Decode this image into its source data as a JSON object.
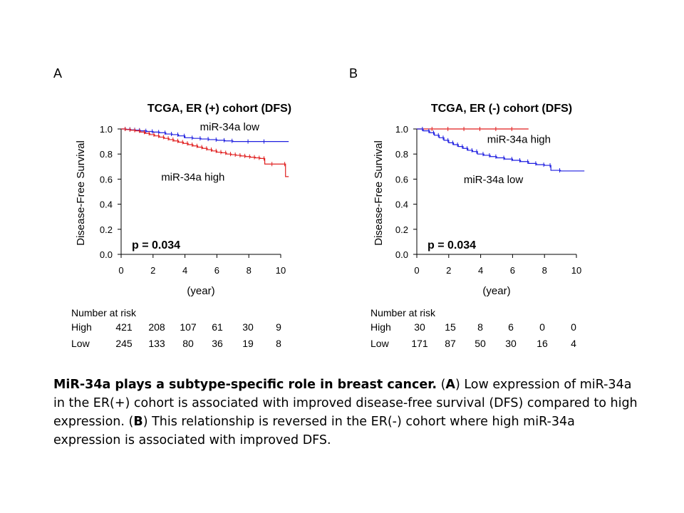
{
  "panels": [
    {
      "letter": "A",
      "chart_data": {
        "type": "line",
        "title": "TCGA, ER (+) cohort (DFS)",
        "xlabel": "(year)",
        "ylabel": "Disease-Free Survival",
        "xlim": [
          0,
          10
        ],
        "ylim": [
          0,
          1
        ],
        "xticks": [
          "0",
          "2",
          "4",
          "6",
          "8",
          "10"
        ],
        "yticks": [
          "0.0",
          "0.2",
          "0.4",
          "0.6",
          "0.8",
          "1.0"
        ],
        "annotation": "p = 0.034",
        "series": [
          {
            "name": "miR-34a low",
            "color": "#1f1fe0",
            "x": [
              0,
              0.3,
              0.6,
              0.9,
              1.2,
              1.6,
              2.0,
              2.4,
              2.8,
              3.2,
              3.6,
              4.0,
              4.5,
              5.0,
              5.5,
              6.0,
              6.5,
              7.0,
              8.0,
              9.0,
              10.5
            ],
            "y": [
              1.0,
              0.997,
              0.993,
              0.99,
              0.985,
              0.98,
              0.975,
              0.97,
              0.96,
              0.955,
              0.945,
              0.93,
              0.925,
              0.92,
              0.915,
              0.91,
              0.905,
              0.9,
              0.9,
              0.9,
              0.9
            ]
          },
          {
            "name": "miR-34a high",
            "color": "#e01f1f",
            "x": [
              0,
              0.3,
              0.6,
              0.9,
              1.2,
              1.5,
              1.8,
              2.1,
              2.4,
              2.7,
              3.0,
              3.3,
              3.6,
              3.9,
              4.2,
              4.5,
              4.8,
              5.1,
              5.4,
              5.7,
              6.0,
              6.3,
              6.6,
              6.9,
              7.2,
              7.5,
              7.8,
              8.1,
              8.4,
              8.7,
              9.0,
              9.5,
              10.3,
              10.5
            ],
            "y": [
              1.0,
              0.995,
              0.99,
              0.985,
              0.975,
              0.965,
              0.955,
              0.945,
              0.935,
              0.925,
              0.915,
              0.905,
              0.895,
              0.885,
              0.875,
              0.865,
              0.855,
              0.845,
              0.835,
              0.825,
              0.815,
              0.81,
              0.8,
              0.795,
              0.79,
              0.785,
              0.78,
              0.775,
              0.77,
              0.765,
              0.72,
              0.72,
              0.62,
              0.62
            ]
          }
        ],
        "series_labels": [
          {
            "series": "miR-34a low",
            "x": 6.8,
            "y": 1.0
          },
          {
            "series": "miR-34a high",
            "x": 4.5,
            "y": 0.6
          }
        ]
      },
      "risk_table": {
        "heading": "Number at risk",
        "rows": [
          {
            "label": "High",
            "values": [
              "421",
              "208",
              "107",
              "61",
              "30",
              "9"
            ]
          },
          {
            "label": "Low",
            "values": [
              "245",
              "133",
              "80",
              "36",
              "19",
              "8"
            ]
          }
        ]
      }
    },
    {
      "letter": "B",
      "chart_data": {
        "type": "line",
        "title": "TCGA, ER (-) cohort (DFS)",
        "xlabel": "(year)",
        "ylabel": "Disease-Free Survival",
        "xlim": [
          0,
          10
        ],
        "ylim": [
          0,
          1
        ],
        "xticks": [
          "0",
          "2",
          "4",
          "6",
          "8",
          "10"
        ],
        "yticks": [
          "0.0",
          "0.2",
          "0.4",
          "0.6",
          "0.8",
          "1.0"
        ],
        "annotation": "p = 0.034",
        "series": [
          {
            "name": "miR-34a high",
            "color": "#e01f1f",
            "x": [
              0,
              1,
              2,
              3,
              4,
              5,
              6,
              7
            ],
            "y": [
              1.0,
              1.0,
              1.0,
              1.0,
              1.0,
              1.0,
              1.0,
              1.0
            ]
          },
          {
            "name": "miR-34a low",
            "color": "#1f1fe0",
            "x": [
              0,
              0.4,
              0.8,
              1.1,
              1.4,
              1.7,
              2.0,
              2.3,
              2.6,
              2.9,
              3.2,
              3.5,
              3.8,
              4.2,
              4.6,
              5.0,
              5.5,
              6.0,
              6.5,
              7.0,
              7.5,
              8.0,
              8.4,
              9.0,
              10.5
            ],
            "y": [
              1.0,
              0.985,
              0.97,
              0.95,
              0.93,
              0.91,
              0.89,
              0.875,
              0.86,
              0.845,
              0.83,
              0.82,
              0.8,
              0.79,
              0.78,
              0.77,
              0.76,
              0.75,
              0.74,
              0.725,
              0.715,
              0.71,
              0.67,
              0.665,
              0.665
            ]
          }
        ],
        "series_labels": [
          {
            "series": "miR-34a high",
            "x": 6.4,
            "y": 0.9
          },
          {
            "series": "miR-34a low",
            "x": 4.8,
            "y": 0.58
          }
        ]
      },
      "risk_table": {
        "heading": "Number at risk",
        "rows": [
          {
            "label": "High",
            "values": [
              "30",
              "15",
              "8",
              "6",
              "0",
              "0"
            ]
          },
          {
            "label": "Low",
            "values": [
              "171",
              "87",
              "50",
              "30",
              "16",
              "4"
            ]
          }
        ]
      }
    }
  ],
  "caption": {
    "lead": "MiR-34a plays a subtype-specific role in breast cancer.",
    "part_a_open": " (",
    "part_a_letter": "A",
    "part_a_text": ") Low expression of miR-34a in the ER(+) cohort is associated with improved disease-free survival (DFS) compared to high expression.  (",
    "part_b_letter": "B",
    "part_b_text": ") This relationship is reversed in the ER(-) cohort where high miR-34a expression is associated with improved DFS."
  }
}
